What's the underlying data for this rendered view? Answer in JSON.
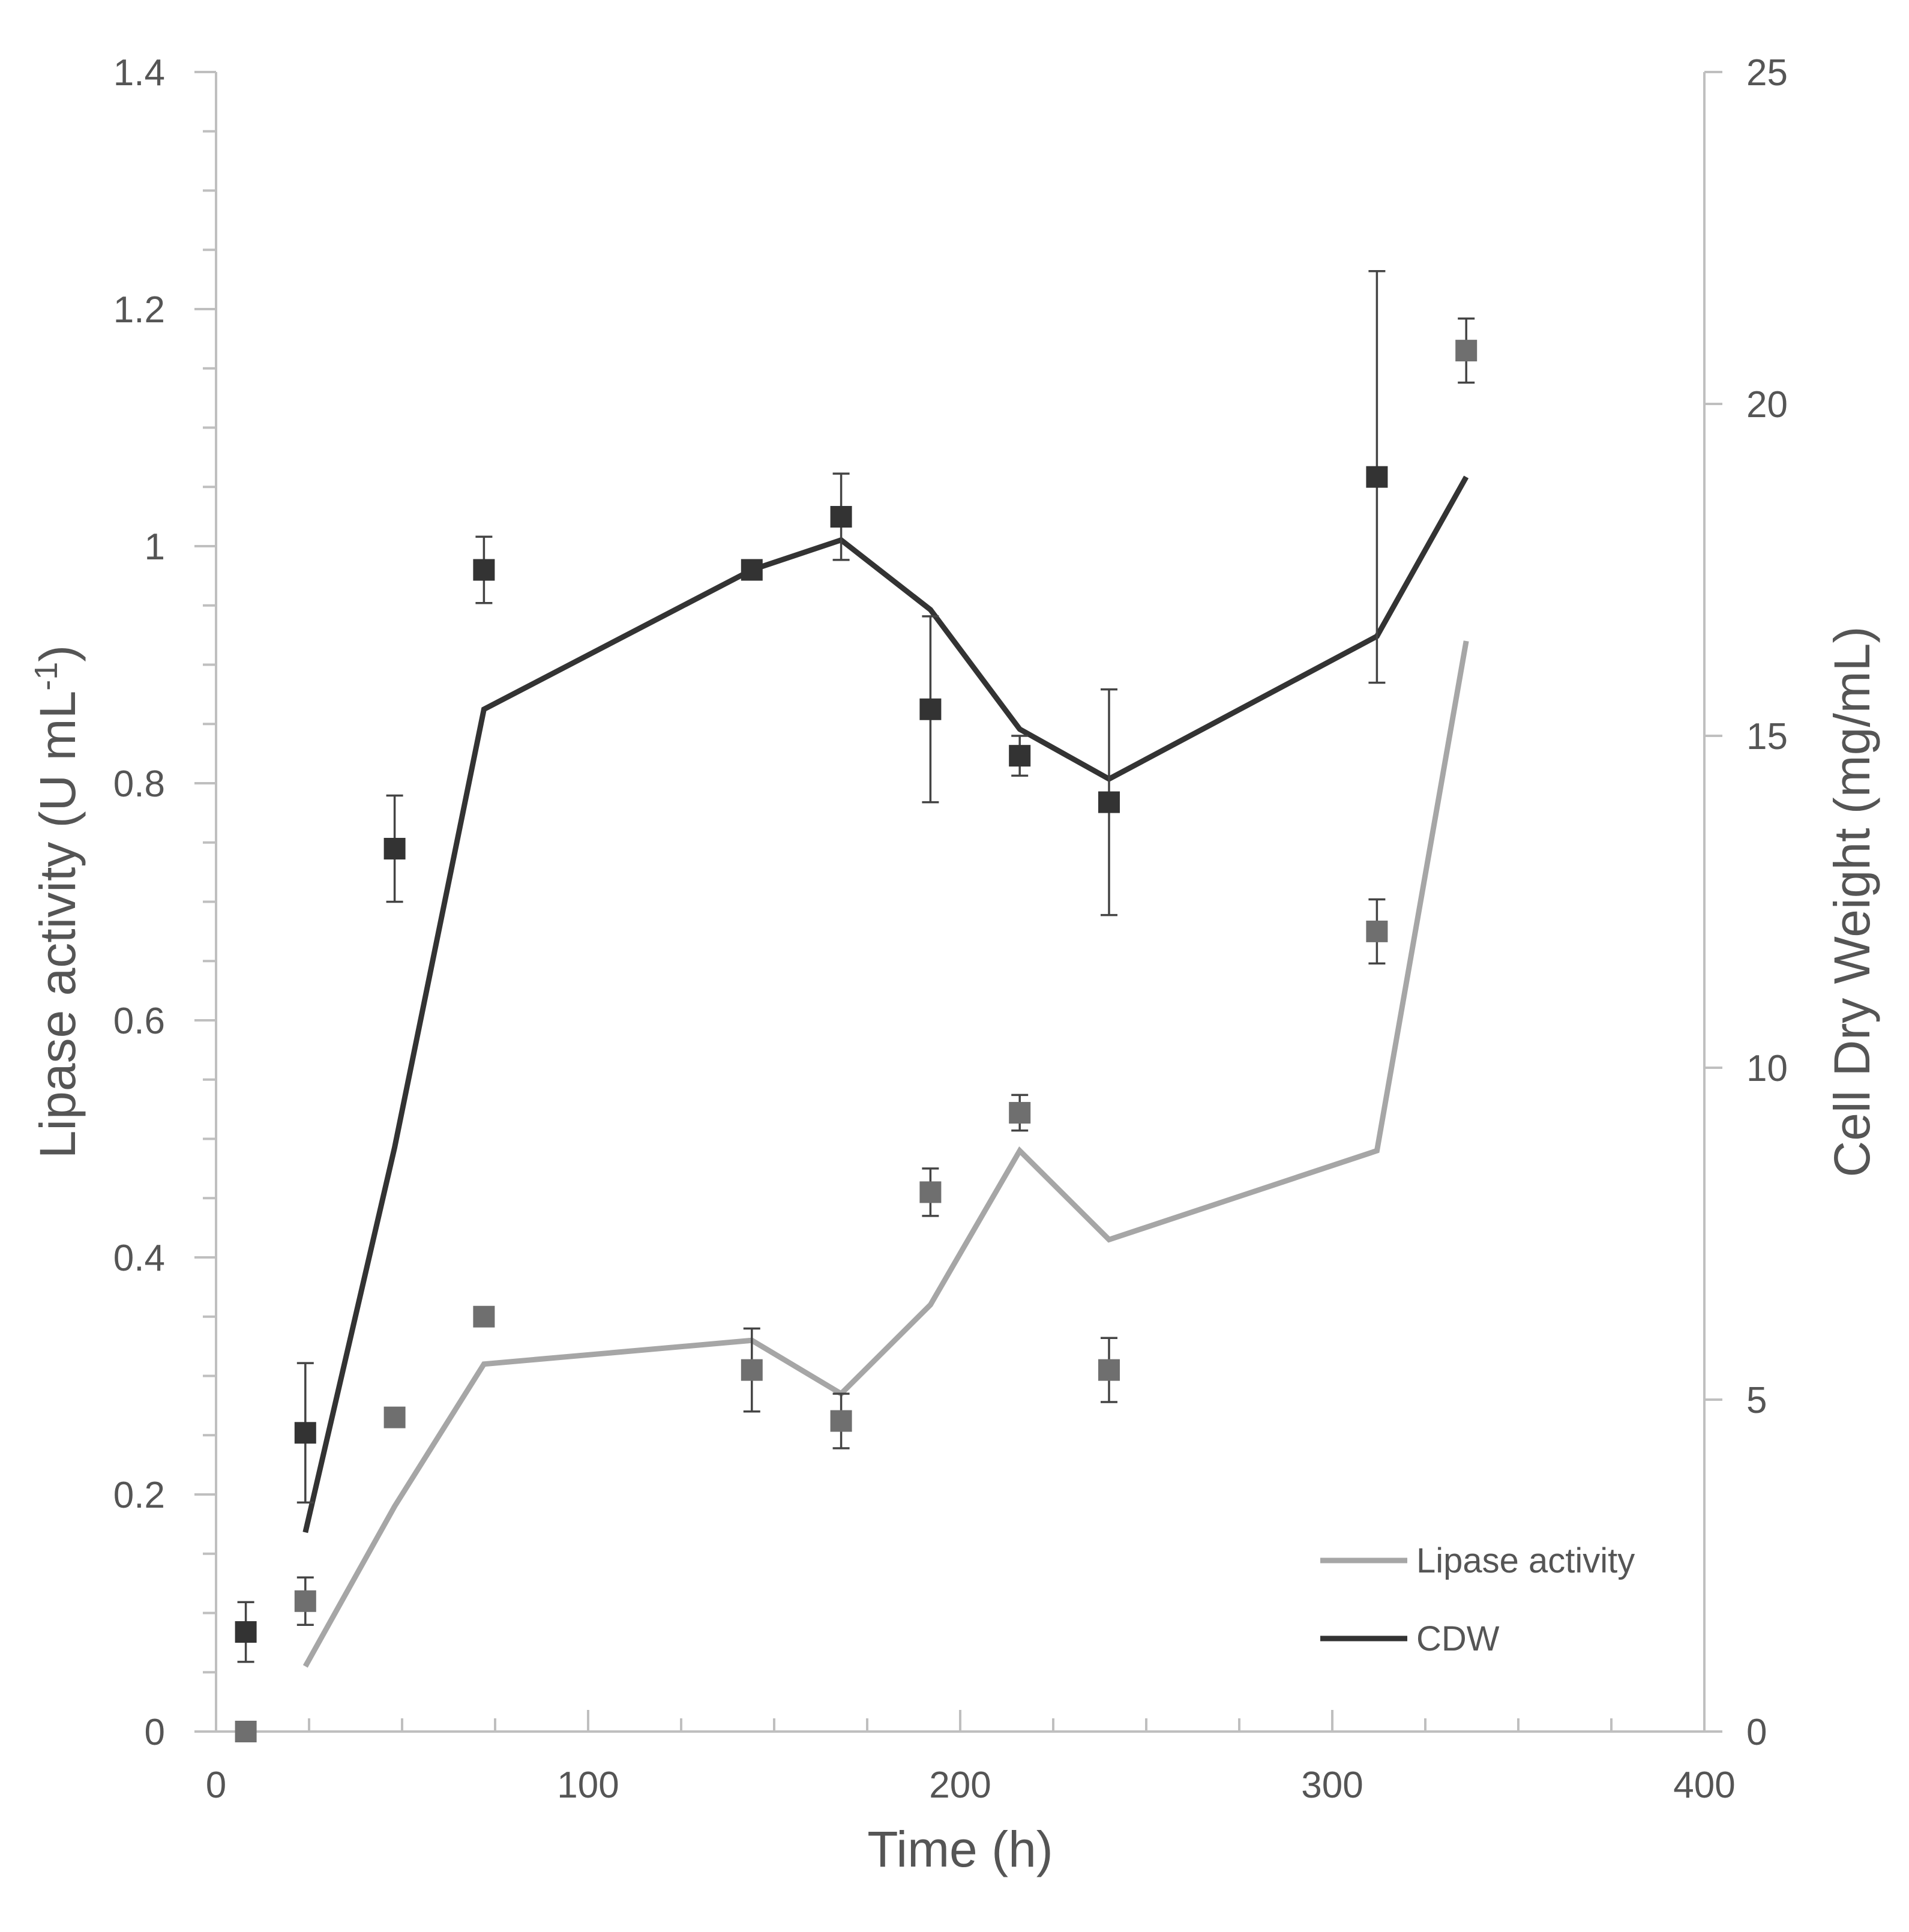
{
  "chart_data": {
    "type": "line+scatter",
    "xlabel": "Time (h)",
    "ylabel_left_prefix": "Lipase activity (U mL",
    "ylabel_left_sup": "-1",
    "ylabel_left_suffix": ")",
    "ylabel_right": "Cell Dry Weight (mg/mL)",
    "xlim": [
      0,
      400
    ],
    "ylim_left": [
      0,
      1.4
    ],
    "ylim_right": [
      0,
      25
    ],
    "x_ticks": [
      0,
      100,
      200,
      300,
      400
    ],
    "x_tick_labels": [
      "0",
      "100",
      "200",
      "300",
      "400"
    ],
    "y_left_ticks": [
      0,
      0.2,
      0.4,
      0.6,
      0.8,
      1.0,
      1.2,
      1.4
    ],
    "y_left_tick_labels": [
      "0",
      "0.2",
      "0.4",
      "0.6",
      "0.8",
      "1",
      "1.2",
      "1.4"
    ],
    "y_right_ticks": [
      0,
      5,
      10,
      15,
      20,
      25
    ],
    "y_right_tick_labels": [
      "0",
      "5",
      "10",
      "15",
      "20",
      "25"
    ],
    "legend": {
      "position": "bottom-right",
      "entries": [
        {
          "label": "Lipase activity",
          "color": "#a6a6a6"
        },
        {
          "label": "CDW",
          "color": "#333333"
        }
      ]
    },
    "series": [
      {
        "name": "Lipase activity",
        "axis": "left",
        "line_color": "#a6a6a6",
        "marker_color": "#6f6f6f",
        "line": {
          "x": [
            24,
            48,
            72,
            144,
            168,
            192,
            216,
            240,
            312,
            336
          ],
          "y": [
            0.055,
            0.19,
            0.31,
            0.33,
            0.285,
            0.36,
            0.49,
            0.415,
            0.49,
            0.92
          ]
        },
        "markers": {
          "x": [
            8,
            24,
            48,
            72,
            144,
            168,
            192,
            216,
            240,
            312,
            336
          ],
          "y": [
            0.0,
            0.11,
            0.265,
            0.35,
            0.305,
            0.262,
            0.455,
            0.522,
            0.305,
            0.675,
            1.165
          ],
          "err": [
            0,
            0.02,
            0,
            0,
            0.035,
            0.023,
            0.02,
            0.015,
            0.027,
            0.027,
            0.027
          ]
        }
      },
      {
        "name": "CDW",
        "axis": "right",
        "line_color": "#333333",
        "marker_color": "#333333",
        "line": {
          "x": [
            24,
            48,
            72,
            144,
            168,
            192,
            216,
            240,
            312,
            336
          ],
          "y": [
            3.0,
            8.8,
            15.4,
            17.5,
            17.95,
            16.9,
            15.1,
            14.35,
            16.5,
            18.9
          ]
        },
        "markers": {
          "x": [
            8,
            24,
            48,
            72,
            144,
            168,
            192,
            216,
            240,
            312,
            336
          ],
          "y": [
            1.5,
            4.5,
            13.3,
            17.5,
            17.5,
            18.3,
            15.4,
            14.7,
            14.0,
            18.9,
            null
          ],
          "err": [
            0.45,
            1.05,
            0.8,
            0.5,
            0,
            0.65,
            1.4,
            0.3,
            1.7,
            3.1,
            0
          ]
        }
      }
    ]
  }
}
